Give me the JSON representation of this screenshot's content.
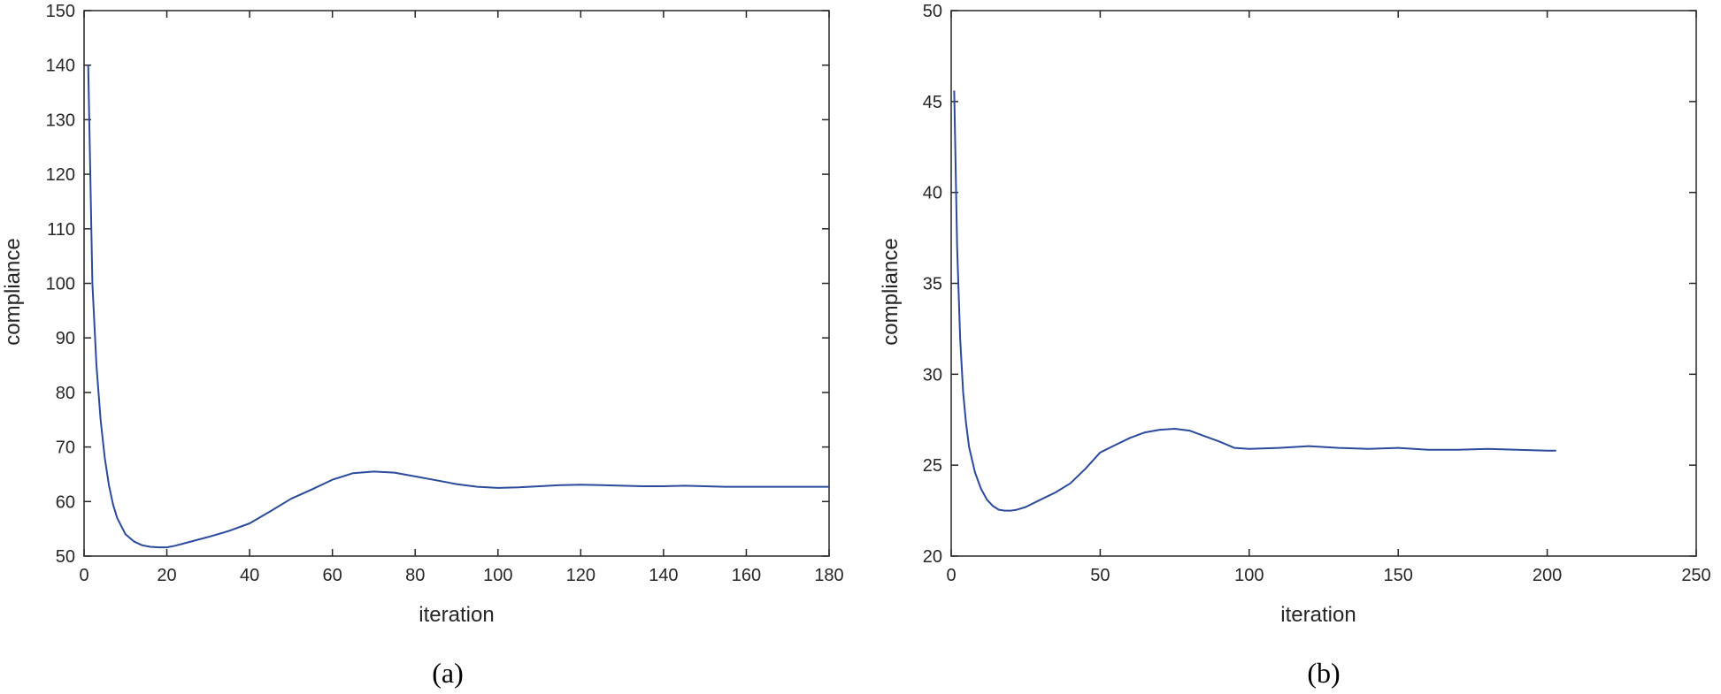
{
  "chart_data": [
    {
      "type": "line",
      "caption": "(a)",
      "xlabel": "iteration",
      "ylabel": "compliance",
      "xlim": [
        0,
        180
      ],
      "ylim": [
        50,
        150
      ],
      "xticks": [
        0,
        20,
        40,
        60,
        80,
        100,
        120,
        140,
        160,
        180
      ],
      "yticks": [
        50,
        60,
        70,
        80,
        90,
        100,
        110,
        120,
        130,
        140,
        150
      ],
      "color": "#2b4a9b",
      "series": [
        {
          "x": [
            1,
            2,
            3,
            4,
            5,
            6,
            7,
            8,
            10,
            12,
            14,
            16,
            18,
            20,
            22,
            25,
            30,
            35,
            40,
            45,
            50,
            55,
            60,
            65,
            70,
            75,
            80,
            85,
            90,
            95,
            100,
            105,
            110,
            115,
            120,
            125,
            130,
            135,
            140,
            145,
            150,
            155,
            160,
            165,
            170,
            175,
            180
          ],
          "y": [
            140,
            100,
            85,
            75,
            68,
            63,
            59.5,
            57,
            54,
            52.7,
            52,
            51.7,
            51.6,
            51.6,
            51.9,
            52.5,
            53.5,
            54.6,
            56,
            58.2,
            60.5,
            62.2,
            64,
            65.2,
            65.5,
            65.3,
            64.6,
            63.9,
            63.2,
            62.7,
            62.5,
            62.6,
            62.8,
            63,
            63.1,
            63,
            62.9,
            62.8,
            62.8,
            62.9,
            62.8,
            62.7,
            62.7,
            62.7,
            62.7,
            62.7,
            62.7
          ]
        }
      ]
    },
    {
      "type": "line",
      "caption": "(b)",
      "xlabel": "iteration",
      "ylabel": "compliance",
      "xlim": [
        0,
        250
      ],
      "ylim": [
        20,
        50
      ],
      "xticks": [
        0,
        50,
        100,
        150,
        200,
        250
      ],
      "yticks": [
        20,
        25,
        30,
        35,
        40,
        45,
        50
      ],
      "color": "#2b4a9b",
      "series": [
        {
          "x": [
            1,
            2,
            3,
            4,
            5,
            6,
            8,
            10,
            12,
            14,
            16,
            18,
            20,
            22,
            25,
            30,
            35,
            40,
            45,
            50,
            55,
            60,
            65,
            70,
            75,
            80,
            85,
            90,
            95,
            100,
            110,
            120,
            130,
            140,
            150,
            160,
            165,
            170,
            180,
            190,
            200,
            203
          ],
          "y": [
            45.6,
            37,
            32,
            29,
            27.3,
            26,
            24.6,
            23.7,
            23.1,
            22.75,
            22.55,
            22.5,
            22.5,
            22.55,
            22.7,
            23.1,
            23.5,
            24,
            24.8,
            25.7,
            26.1,
            26.5,
            26.8,
            26.95,
            27,
            26.9,
            26.6,
            26.3,
            25.95,
            25.9,
            25.95,
            26.05,
            25.95,
            25.9,
            25.95,
            25.85,
            25.85,
            25.85,
            25.9,
            25.85,
            25.8,
            25.8
          ]
        }
      ]
    }
  ]
}
